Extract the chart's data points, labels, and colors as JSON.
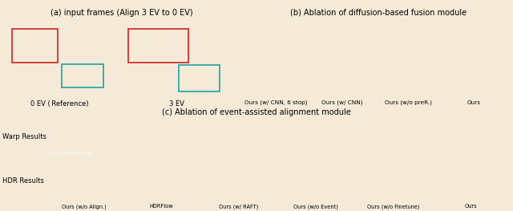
{
  "fig_width": 6.4,
  "fig_height": 2.63,
  "dpi": 100,
  "bg_top": "#f5ead8",
  "bg_bottom": "#dce8f0",
  "section_a_title": "(a) input frames (Align 3 EV to 0 EV)",
  "section_b_title": "(b) Ablation of diffusion-based fusion module",
  "section_c_title": "(c) Ablation of event-assisted alignment module",
  "section_a_labels": [
    "0 EV (Reference)",
    "3 EV"
  ],
  "section_b_labels": [
    "Ours (w/ CNN, 6 stop)",
    "Ours (w/ CNN)",
    "Ours (w/o preR.)",
    "Ours"
  ],
  "section_c_top_labels": [
    "Ours (w/o Align.)",
    "HDRFlow",
    "Ours (w/ RAFT)",
    "Ours (w/o Event)",
    "Ours (w/o Finetune)",
    "Ours"
  ],
  "warp_label": "Warp Results",
  "hdr_label": "HDR Results",
  "ref_label": "0 EV (Reference)",
  "italic_labels_a": [
    true,
    false
  ],
  "teal_border": "#20a0a0",
  "red_border": "#cc2222",
  "title_fontsize": 7.0,
  "label_fontsize": 6.0
}
